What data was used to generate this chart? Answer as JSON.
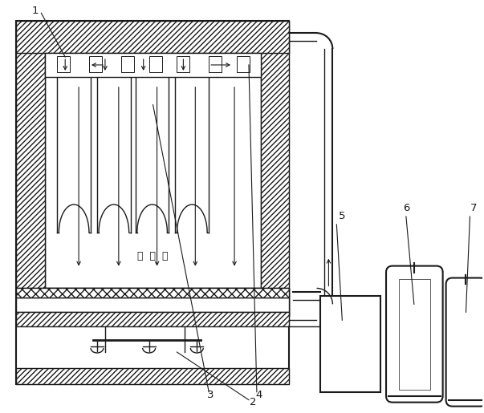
{
  "bg_color": "#ffffff",
  "line_color": "#1a1a1a",
  "figsize": [
    6.03,
    5.15
  ],
  "dpi": 100
}
